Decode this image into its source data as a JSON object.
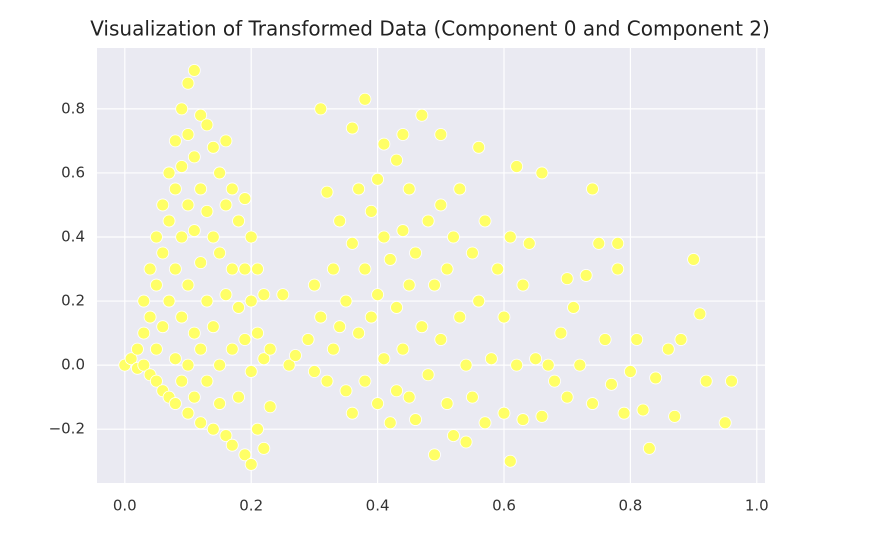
{
  "chart_data": {
    "type": "scatter",
    "title": "Visualization of Transformed Data (Component 0 and Component 2)",
    "x": [
      0.0,
      0.01,
      0.02,
      0.02,
      0.03,
      0.03,
      0.03,
      0.04,
      0.04,
      0.04,
      0.05,
      0.05,
      0.05,
      0.05,
      0.06,
      0.06,
      0.06,
      0.06,
      0.07,
      0.07,
      0.07,
      0.07,
      0.08,
      0.08,
      0.08,
      0.08,
      0.08,
      0.09,
      0.09,
      0.09,
      0.09,
      0.09,
      0.1,
      0.1,
      0.1,
      0.1,
      0.1,
      0.1,
      0.11,
      0.11,
      0.11,
      0.11,
      0.11,
      0.12,
      0.12,
      0.12,
      0.12,
      0.12,
      0.13,
      0.13,
      0.13,
      0.13,
      0.14,
      0.14,
      0.14,
      0.14,
      0.15,
      0.15,
      0.15,
      0.15,
      0.16,
      0.16,
      0.16,
      0.16,
      0.17,
      0.17,
      0.17,
      0.17,
      0.18,
      0.18,
      0.18,
      0.19,
      0.19,
      0.19,
      0.19,
      0.2,
      0.2,
      0.2,
      0.2,
      0.21,
      0.21,
      0.21,
      0.22,
      0.22,
      0.22,
      0.23,
      0.23,
      0.25,
      0.26,
      0.27,
      0.29,
      0.3,
      0.3,
      0.31,
      0.31,
      0.32,
      0.32,
      0.33,
      0.33,
      0.34,
      0.34,
      0.35,
      0.35,
      0.36,
      0.36,
      0.36,
      0.37,
      0.37,
      0.38,
      0.38,
      0.38,
      0.39,
      0.39,
      0.4,
      0.4,
      0.4,
      0.41,
      0.41,
      0.41,
      0.42,
      0.42,
      0.43,
      0.43,
      0.43,
      0.44,
      0.44,
      0.44,
      0.45,
      0.45,
      0.45,
      0.46,
      0.46,
      0.47,
      0.47,
      0.48,
      0.48,
      0.49,
      0.49,
      0.5,
      0.5,
      0.5,
      0.51,
      0.51,
      0.52,
      0.52,
      0.53,
      0.53,
      0.54,
      0.54,
      0.55,
      0.55,
      0.56,
      0.56,
      0.57,
      0.57,
      0.58,
      0.59,
      0.6,
      0.6,
      0.61,
      0.61,
      0.62,
      0.62,
      0.63,
      0.63,
      0.64,
      0.65,
      0.66,
      0.66,
      0.67,
      0.68,
      0.69,
      0.7,
      0.7,
      0.71,
      0.72,
      0.73,
      0.74,
      0.74,
      0.75,
      0.76,
      0.77,
      0.78,
      0.78,
      0.79,
      0.8,
      0.81,
      0.82,
      0.83,
      0.84,
      0.86,
      0.87,
      0.88,
      0.9,
      0.91,
      0.92,
      0.95,
      0.96
    ],
    "values": [
      0.0,
      0.02,
      0.05,
      -0.01,
      0.1,
      0.2,
      0.0,
      0.15,
      0.3,
      -0.03,
      0.4,
      0.25,
      0.05,
      -0.05,
      0.5,
      0.35,
      0.12,
      -0.08,
      0.6,
      0.45,
      0.2,
      -0.1,
      0.7,
      0.55,
      0.3,
      0.02,
      -0.12,
      0.8,
      0.62,
      0.4,
      0.15,
      -0.05,
      0.88,
      0.72,
      0.5,
      0.25,
      0.0,
      -0.15,
      0.92,
      0.65,
      0.42,
      0.1,
      -0.1,
      0.78,
      0.55,
      0.32,
      0.05,
      -0.18,
      0.75,
      0.48,
      0.2,
      -0.05,
      0.68,
      0.4,
      0.12,
      -0.2,
      0.6,
      0.35,
      0.0,
      -0.12,
      0.7,
      0.5,
      0.22,
      -0.22,
      0.55,
      0.3,
      0.05,
      -0.25,
      0.45,
      0.18,
      -0.1,
      0.52,
      0.3,
      0.08,
      -0.28,
      0.4,
      0.2,
      -0.02,
      -0.31,
      0.3,
      0.1,
      -0.2,
      0.22,
      0.02,
      -0.26,
      0.05,
      -0.13,
      0.22,
      0.0,
      0.03,
      0.08,
      0.25,
      -0.02,
      0.8,
      0.15,
      0.54,
      -0.05,
      0.3,
      0.05,
      0.45,
      0.12,
      0.2,
      -0.08,
      0.74,
      0.38,
      -0.15,
      0.55,
      0.1,
      0.83,
      0.3,
      -0.05,
      0.48,
      0.15,
      0.58,
      0.22,
      -0.12,
      0.69,
      0.4,
      0.02,
      0.33,
      -0.18,
      0.64,
      0.18,
      -0.08,
      0.72,
      0.42,
      0.05,
      0.55,
      0.25,
      -0.1,
      0.35,
      -0.17,
      0.78,
      0.12,
      0.45,
      -0.03,
      0.25,
      -0.28,
      0.72,
      0.5,
      0.08,
      0.3,
      -0.12,
      0.4,
      -0.22,
      0.55,
      0.15,
      0.0,
      -0.24,
      0.35,
      -0.1,
      0.68,
      0.2,
      0.45,
      -0.18,
      0.02,
      0.3,
      0.15,
      -0.15,
      0.4,
      -0.3,
      0.62,
      0.0,
      0.25,
      -0.17,
      0.38,
      0.02,
      0.6,
      -0.16,
      0.0,
      -0.05,
      0.1,
      0.27,
      -0.1,
      0.18,
      0.0,
      0.28,
      0.55,
      -0.12,
      0.38,
      0.08,
      -0.06,
      0.3,
      0.38,
      -0.15,
      -0.02,
      0.08,
      -0.14,
      -0.26,
      -0.04,
      0.05,
      -0.16,
      0.08,
      0.33,
      0.16,
      -0.05,
      -0.18,
      -0.05
    ],
    "color": "#ffff66",
    "xlim": [
      -0.044,
      1.013
    ],
    "ylim": [
      -0.368,
      0.99
    ],
    "xticks": [
      {
        "value": 0,
        "label": "0.0"
      },
      0.2,
      0.4,
      0.6,
      0.8,
      {
        "value": 1,
        "label": "1.0"
      }
    ],
    "yticks": [
      {
        "value": -0.2,
        "label": "−0.2"
      },
      {
        "value": 0,
        "label": "0.0"
      },
      0.2,
      0.4,
      0.6,
      0.8
    ],
    "grid": true
  }
}
